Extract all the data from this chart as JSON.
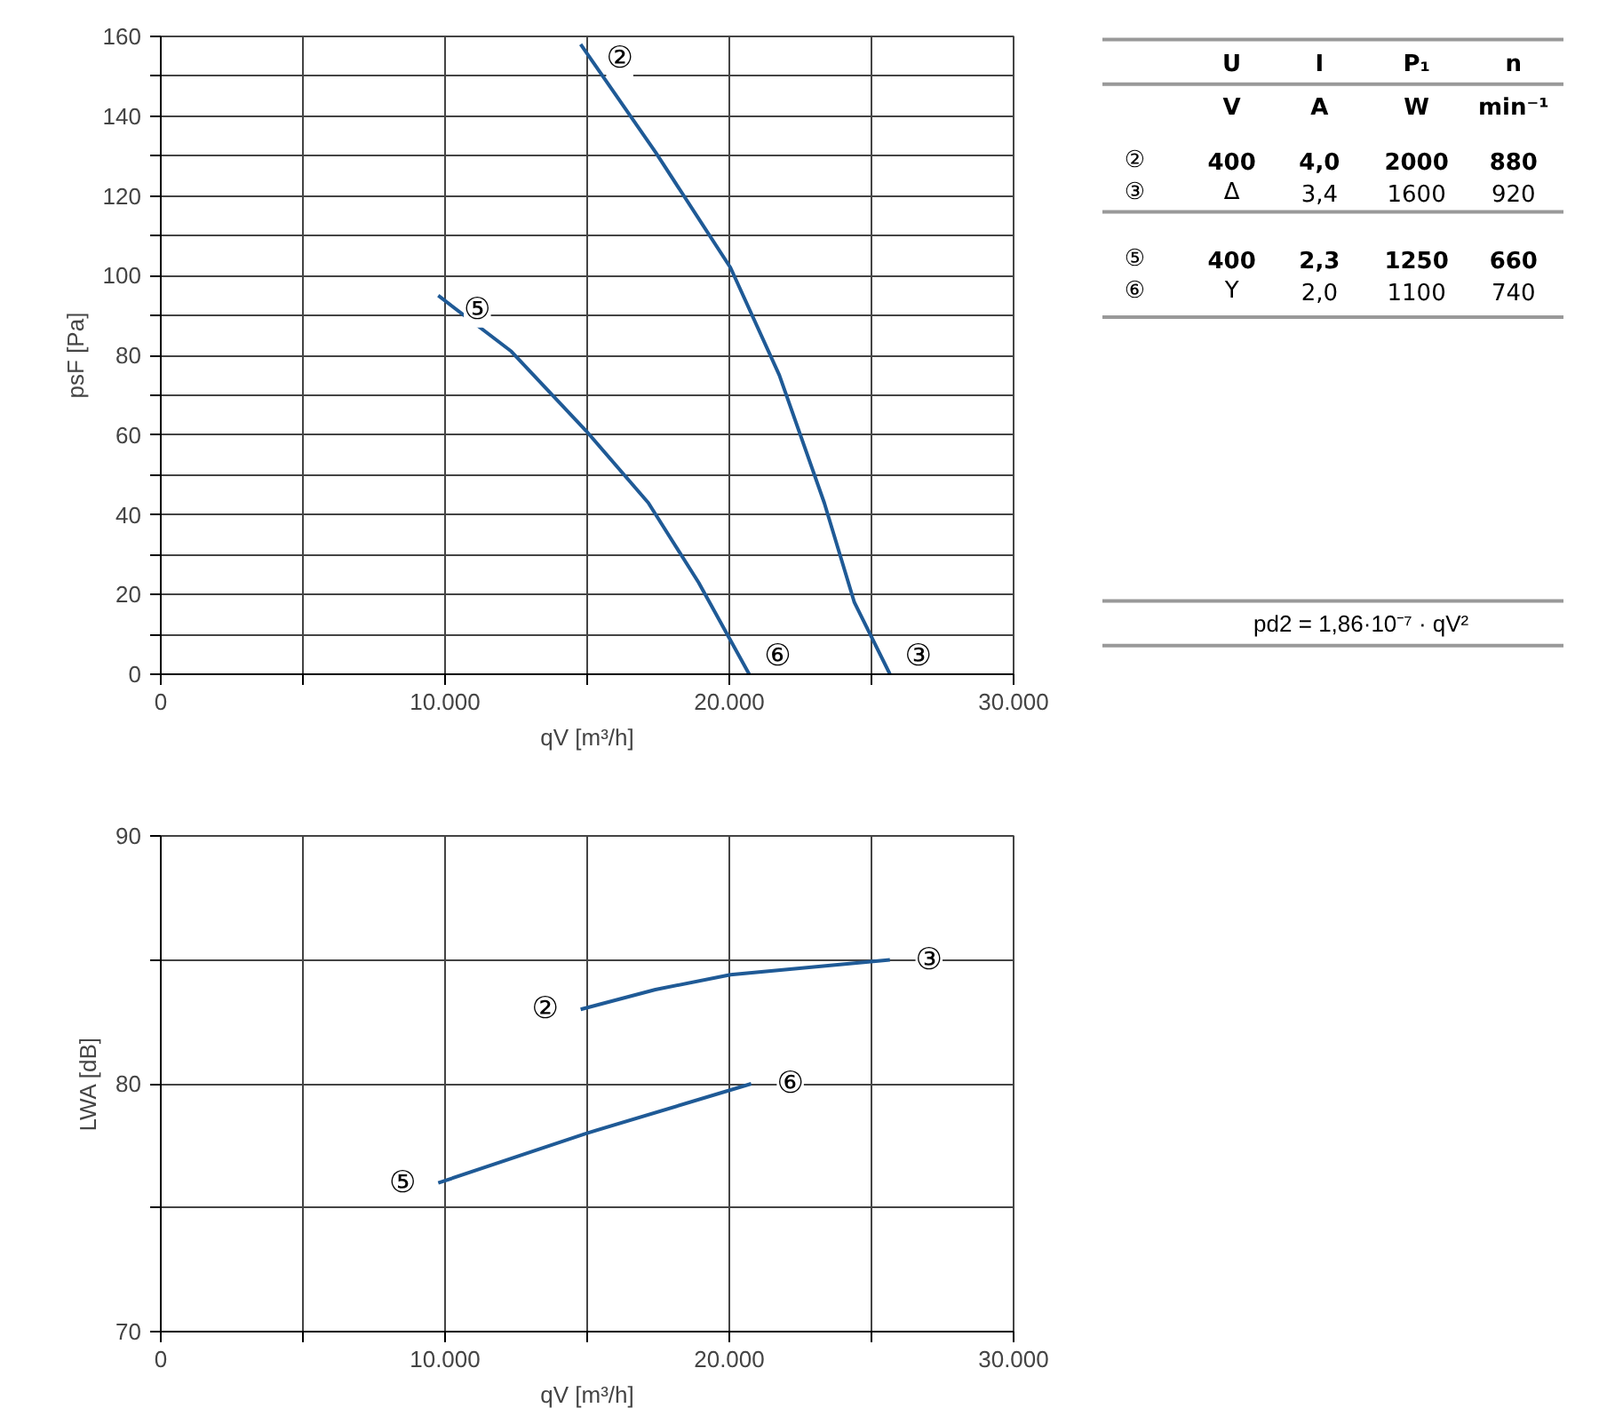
{
  "chart_data": [
    {
      "type": "line",
      "xlabel": "qV [m³/h]",
      "ylabel": "psF [Pa]",
      "xlim": [
        0,
        30000
      ],
      "ylim": [
        0,
        160
      ],
      "xticks": [
        {
          "value": 0,
          "label": "0"
        },
        {
          "value": 5000,
          "label": null
        },
        {
          "value": 10000,
          "label": "10.000"
        },
        {
          "value": 15000,
          "label": null
        },
        {
          "value": 20000,
          "label": "20.000"
        },
        {
          "value": 25000,
          "label": null
        },
        {
          "value": 30000,
          "label": "30.000"
        }
      ],
      "yticks": [
        0,
        {
          "value": 10,
          "label": null
        },
        20,
        {
          "value": 30,
          "label": null
        },
        40,
        {
          "value": 50,
          "label": null
        },
        60,
        {
          "value": 70,
          "label": null
        },
        80,
        {
          "value": 90,
          "label": null
        },
        100,
        {
          "value": 110,
          "label": null
        },
        120,
        {
          "value": 130,
          "label": null
        },
        140,
        {
          "value": 150,
          "label": null
        },
        160
      ],
      "grid": true,
      "marker": "none",
      "line_style": "solid",
      "series": [
        {
          "color": "#1f5a96",
          "x": [
            14770,
            17400,
            20040,
            21760,
            23340,
            24400,
            25650
          ],
          "values": [
            158,
            131,
            102,
            75,
            43,
            18,
            0
          ]
        },
        {
          "color": "#1f5a96",
          "x": [
            9760,
            12330,
            14970,
            17150,
            18920,
            20700
          ],
          "values": [
            95,
            81,
            61,
            43,
            23,
            0
          ]
        }
      ],
      "annotations": [
        "②",
        "③",
        "⑤",
        "⑥"
      ]
    },
    {
      "type": "other",
      "annotations": [
        "U",
        "I",
        "P₁",
        "n",
        "V",
        "A",
        "W",
        "min⁻¹",
        "②",
        "400",
        "4,0",
        "2000",
        "880",
        "③",
        "Δ",
        "3,4",
        "1600",
        "920",
        "⑤",
        "400",
        "2,3",
        "1250",
        "660",
        "⑥",
        "Y",
        "2,0",
        "1100",
        "740",
        "pd2 = 1,86·10⁻⁷ · qV²"
      ]
    },
    {
      "type": "line",
      "xlabel": "qV [m³/h]",
      "ylabel": "LWA [dB]",
      "xlim": [
        0,
        30000
      ],
      "ylim": [
        70,
        90
      ],
      "xticks": [
        {
          "value": 0,
          "label": "0"
        },
        {
          "value": 5000,
          "label": null
        },
        {
          "value": 10000,
          "label": "10.000"
        },
        {
          "value": 15000,
          "label": null
        },
        {
          "value": 20000,
          "label": "20.000"
        },
        {
          "value": 25000,
          "label": null
        },
        {
          "value": 30000,
          "label": "30.000"
        }
      ],
      "yticks": [
        70,
        {
          "value": 75,
          "label": null
        },
        80,
        {
          "value": 85,
          "label": null
        },
        90
      ],
      "grid": true,
      "marker": "none",
      "line_style": "solid",
      "series": [
        {
          "color": "#1f5a96",
          "x": [
            14770,
            17400,
            20040,
            25650
          ],
          "values": [
            83.0,
            83.8,
            84.4,
            85.0
          ]
        },
        {
          "color": "#1f5a96",
          "x": [
            9760,
            14970,
            20770
          ],
          "values": [
            76.0,
            78.0,
            80.0
          ]
        }
      ],
      "annotations": [
        "②",
        "③",
        "⑤",
        "⑥"
      ]
    }
  ]
}
